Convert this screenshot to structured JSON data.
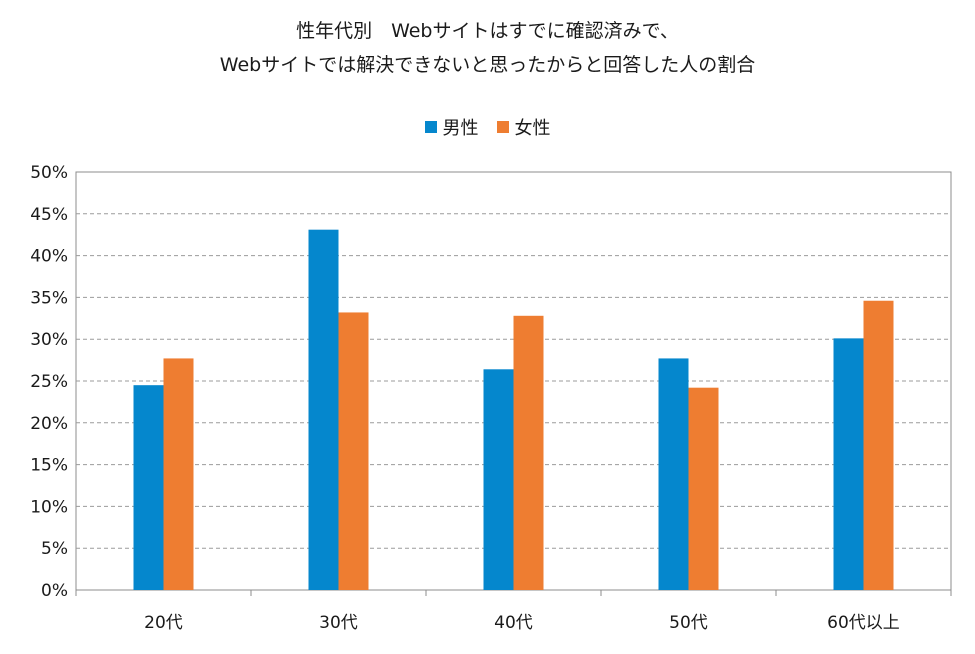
{
  "chart_data": {
    "type": "bar",
    "title_lines": [
      "性年代別　Webサイトはすでに確認済みで、",
      "Webサイトでは解決できないと思ったからと回答した人の割合"
    ],
    "categories": [
      "20代",
      "30代",
      "40代",
      "50代",
      "60代以上"
    ],
    "series": [
      {
        "name": "男性",
        "color": "#0587cd",
        "values": [
          24.5,
          43.1,
          26.4,
          27.7,
          30.1
        ]
      },
      {
        "name": "女性",
        "color": "#ee7d31",
        "values": [
          27.7,
          33.2,
          32.8,
          24.2,
          34.6
        ]
      }
    ],
    "xlabel": "",
    "ylabel": "",
    "ylim": [
      0,
      50
    ],
    "yticks": [
      "0%",
      "5%",
      "10%",
      "15%",
      "20%",
      "25%",
      "30%",
      "35%",
      "40%",
      "45%",
      "50%"
    ],
    "y_unit": "%",
    "grid": true,
    "grid_style": "dashed",
    "legend_position": "top"
  }
}
